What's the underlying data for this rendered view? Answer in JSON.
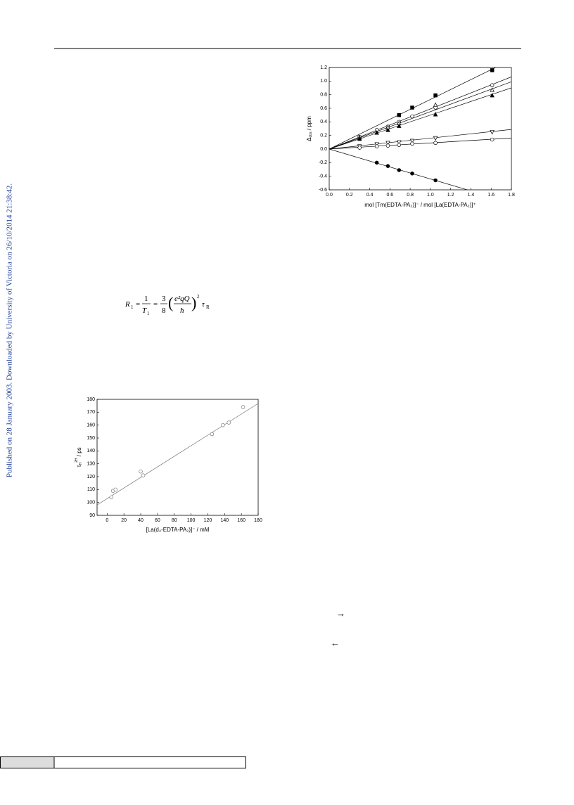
{
  "sidebar": "Published on 28 January 2003. Downloaded by University of Victoria on 26/10/2014 21:38:42.",
  "equation": {
    "r": "R",
    "r_sub": "1",
    "one": "1",
    "t": "T",
    "t_sub": "1",
    "three": "3",
    "eight": "8",
    "num": "e²qQ",
    "den": "ħ",
    "power": "2",
    "tau": "τ",
    "tau_sub": "R",
    "eq": "="
  },
  "arrows": [
    "→",
    "←"
  ],
  "chart_data": [
    {
      "type": "scatter",
      "ylabel": {
        "main": "Δ",
        "sub": "obs",
        "rest": " / ppm"
      },
      "xlabel": "mol [Tm(EDTA-PA₂)]⁻ / mol [La(EDTA-PA₂)]⁺",
      "xlim": [
        0,
        1.8
      ],
      "ylim": [
        -0.6,
        1.2
      ],
      "xticks": [
        {
          "value": 0,
          "label": "0.0"
        },
        0.2,
        0.4,
        0.6,
        0.8,
        {
          "value": 1,
          "label": "1.0"
        },
        1.2,
        1.4,
        1.6,
        1.8
      ],
      "yticks": [
        -0.6,
        -0.4,
        -0.2,
        {
          "value": 0,
          "label": "0.0"
        },
        0.2,
        0.4,
        0.6,
        0.8,
        {
          "value": 1,
          "label": "1.0"
        },
        1.2
      ],
      "color": "#000000",
      "series": [
        {
          "marker": "square",
          "filled": true,
          "fit_slope": 0.73,
          "x": [
            0.69,
            0.82,
            1.05,
            1.61
          ],
          "values": [
            0.5,
            0.61,
            0.79,
            1.16
          ]
        },
        {
          "marker": "circle",
          "filled": false,
          "fit_slope": 0.59,
          "x": [
            0.3,
            0.47,
            0.58,
            0.69,
            0.82,
            1.05,
            1.61
          ],
          "values": [
            0.18,
            0.28,
            0.33,
            0.4,
            0.48,
            0.61,
            0.94
          ]
        },
        {
          "marker": "triangle-up",
          "filled": false,
          "fit_slope": 0.55,
          "x": [
            0.3,
            0.58,
            0.69,
            1.05,
            1.61
          ],
          "values": [
            0.17,
            0.32,
            0.38,
            0.65,
            0.87
          ]
        },
        {
          "marker": "triangle-up",
          "filled": true,
          "fit_slope": 0.5,
          "x": [
            0.3,
            0.47,
            0.58,
            0.69,
            1.05,
            1.61
          ],
          "values": [
            0.15,
            0.24,
            0.28,
            0.34,
            0.51,
            0.79
          ]
        },
        {
          "marker": "triangle-down",
          "filled": false,
          "fit_slope": 0.16,
          "x": [
            0.3,
            0.47,
            0.58,
            0.69,
            0.82,
            1.05,
            1.61
          ],
          "values": [
            0.04,
            0.07,
            0.09,
            0.1,
            0.12,
            0.16,
            0.25
          ]
        },
        {
          "marker": "circle",
          "filled": false,
          "fit_slope": 0.09,
          "x": [
            0.3,
            0.47,
            0.58,
            0.69,
            0.82,
            1.05,
            1.61
          ],
          "values": [
            0.02,
            0.04,
            0.05,
            0.06,
            0.08,
            0.09,
            0.14
          ]
        },
        {
          "marker": "circle",
          "filled": true,
          "fit_slope": -0.44,
          "x": [
            0.47,
            0.58,
            0.69,
            0.82,
            1.05
          ],
          "values": [
            -0.2,
            -0.25,
            -0.31,
            -0.36,
            -0.46
          ]
        }
      ]
    },
    {
      "type": "scatter",
      "ylabel": {
        "main": "τ",
        "sub": "H",
        "sup": "2H",
        "rest": " / ps"
      },
      "xlabel": "[La(d₄-EDTA-PA₂)]⁻ / mM",
      "xlim": [
        -12,
        180
      ],
      "ylim": [
        90,
        180
      ],
      "xticks": [
        0,
        20,
        40,
        60,
        80,
        100,
        120,
        140,
        160,
        180
      ],
      "yticks": [
        90,
        100,
        110,
        120,
        130,
        140,
        150,
        160,
        170,
        180
      ],
      "color": "#777777",
      "series": [
        {
          "marker": "circle",
          "filled": false,
          "fit_slope": 0.41,
          "fit_intercept": 103,
          "x": [
            5,
            7,
            10,
            40,
            43,
            125,
            138,
            145,
            162
          ],
          "values": [
            104,
            109,
            110,
            124,
            121,
            153,
            160,
            162,
            174
          ]
        }
      ]
    }
  ]
}
